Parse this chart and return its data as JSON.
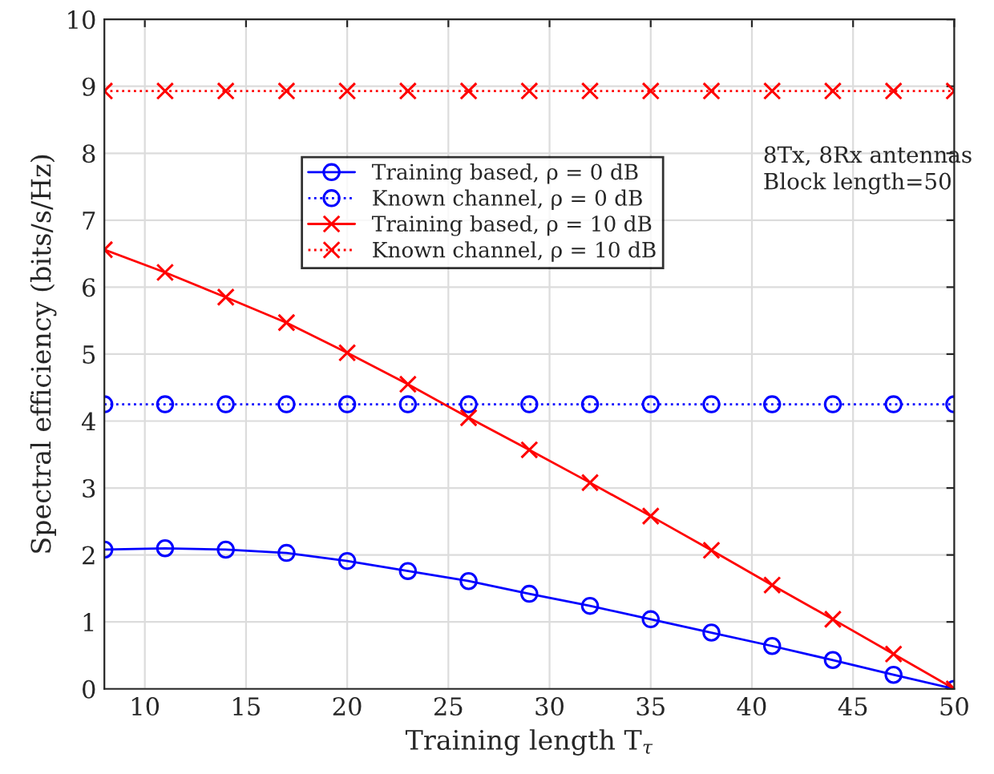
{
  "chart_data": {
    "type": "line",
    "xlabel": "Training length T$_{τ}$",
    "ylabel": "Spectral efficiency (bits/s/Hz)",
    "x": [
      8,
      11,
      14,
      17,
      20,
      23,
      26,
      29,
      32,
      35,
      38,
      41,
      44,
      47,
      50
    ],
    "series": [
      {
        "name": "Training based, ρ = 0 dB",
        "color": "#0000ff",
        "marker": "circle",
        "line_style": "solid",
        "values": [
          2.08,
          2.1,
          2.08,
          2.03,
          1.91,
          1.76,
          1.61,
          1.42,
          1.24,
          1.04,
          0.84,
          0.64,
          0.43,
          0.21,
          0
        ]
      },
      {
        "name": "Known channel, ρ = 0 dB",
        "color": "#0000ff",
        "marker": "circle",
        "line_style": "dotted",
        "values": [
          4.25,
          4.25,
          4.25,
          4.25,
          4.25,
          4.25,
          4.25,
          4.25,
          4.25,
          4.25,
          4.25,
          4.25,
          4.25,
          4.25,
          4.25
        ]
      },
      {
        "name": "Training based, ρ = 10 dB",
        "color": "#ff0000",
        "marker": "cross",
        "line_style": "solid",
        "values": [
          6.56,
          6.22,
          5.85,
          5.47,
          5.02,
          4.55,
          4.05,
          3.57,
          3.08,
          2.58,
          2.07,
          1.55,
          1.04,
          0.52,
          0
        ]
      },
      {
        "name": "Known channel, ρ = 10 dB",
        "color": "#ff0000",
        "marker": "cross",
        "line_style": "dotted",
        "values": [
          8.93,
          8.93,
          8.93,
          8.93,
          8.93,
          8.93,
          8.93,
          8.93,
          8.93,
          8.93,
          8.93,
          8.93,
          8.93,
          8.93,
          8.93
        ]
      }
    ],
    "annotations": [
      "8Tx, 8Rx antennas\nBlock length=50"
    ],
    "xlim": [
      8,
      50
    ],
    "xticks": [
      10,
      15,
      20,
      25,
      30,
      35,
      40,
      45,
      50
    ],
    "ylim": [
      0,
      10
    ],
    "yticks": [
      0,
      1,
      2,
      3,
      4,
      5,
      6,
      7,
      8,
      9,
      10
    ],
    "grid": true,
    "legend": "top left"
  }
}
